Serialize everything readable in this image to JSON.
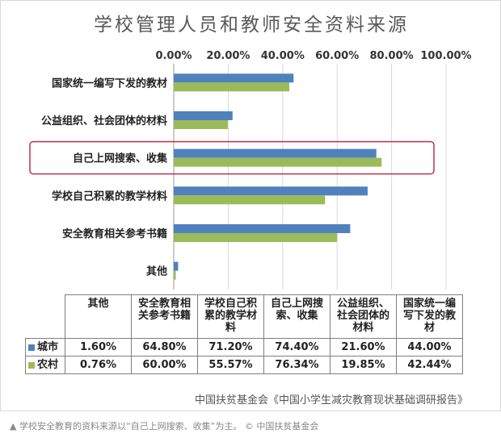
{
  "colors": {
    "city": "#4f81bd",
    "rural": "#9bbb59",
    "highlight": "#c0304a",
    "grid": "#d9d9d9"
  },
  "chart_data": {
    "type": "bar",
    "orientation": "horizontal",
    "title": "学校管理人员和教师安全资料来源",
    "categories_top_to_bottom": [
      "国家统一编写下发的教材",
      "公益组织、社会团体的材料",
      "自己上网搜索、收集",
      "学校自己积累的教学材料",
      "安全教育相关参考书籍",
      "其他"
    ],
    "series": [
      {
        "name": "城市",
        "values": [
          44.0,
          21.6,
          74.4,
          71.2,
          64.8,
          1.6
        ]
      },
      {
        "name": "农村",
        "values": [
          42.44,
          19.85,
          76.34,
          55.57,
          60.0,
          0.76
        ]
      }
    ],
    "xlim": [
      0,
      100
    ],
    "x_ticks": [
      "0.00%",
      "20.00%",
      "40.00%",
      "60.00%",
      "80.00%",
      "100.00%"
    ],
    "x_axis_position": "top",
    "grid": true,
    "highlighted_category": "自己上网搜索、收集"
  },
  "table": {
    "headers": [
      [
        "其他"
      ],
      [
        "安全教育相",
        "关参考书籍"
      ],
      [
        "学校自己积",
        "累的教学材",
        "料"
      ],
      [
        "自己上网搜",
        "索、收集"
      ],
      [
        "公益组织、",
        "社会团体的",
        "材料"
      ],
      [
        "国家统一编",
        "写下发的教",
        "材"
      ]
    ],
    "rows": [
      {
        "label": "城市",
        "values": [
          "1.60%",
          "64.80%",
          "71.20%",
          "74.40%",
          "21.60%",
          "44.00%"
        ]
      },
      {
        "label": "农村",
        "values": [
          "0.76%",
          "60.00%",
          "55.57%",
          "76.34%",
          "19.85%",
          "42.44%"
        ]
      }
    ]
  },
  "source": "中国扶贫基金会《中国小学生减灾教育现状基础调研报告》",
  "caption": "▲ 学校安全教育的资料来源以“自己上网搜索、收集”为主。 © 中国扶贫基金会"
}
